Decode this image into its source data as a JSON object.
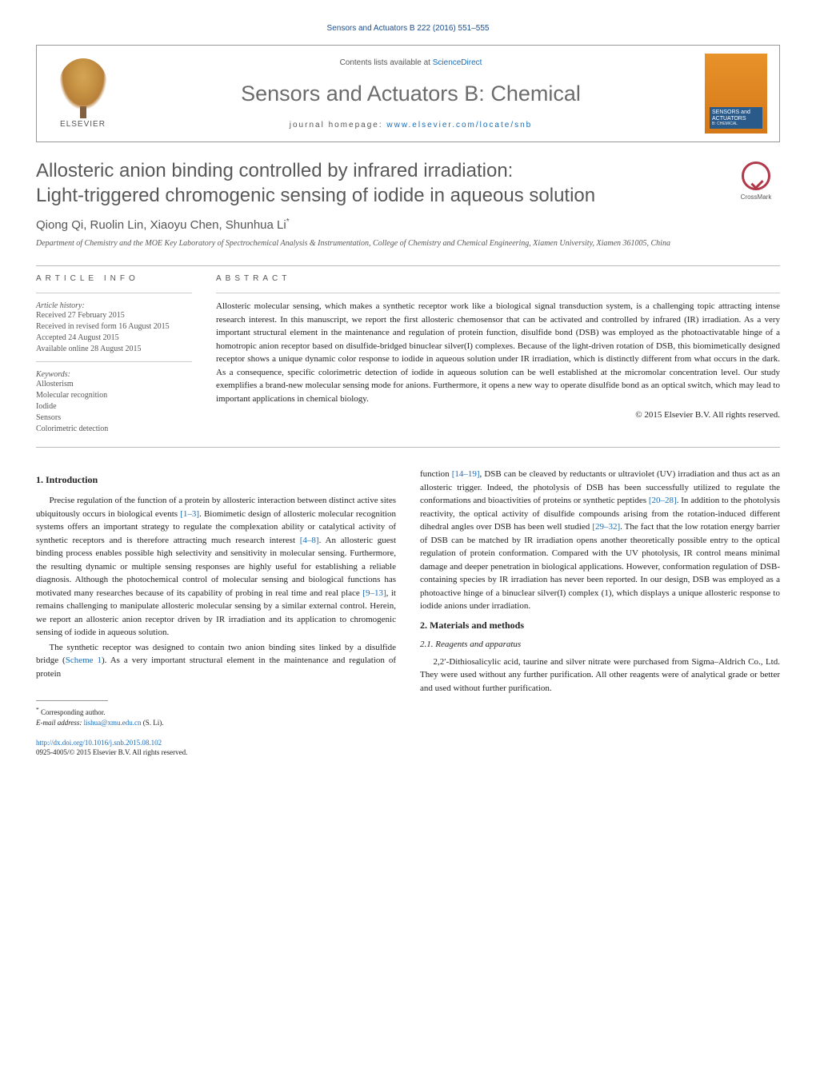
{
  "journal_ref": "Sensors and Actuators B 222 (2016) 551–555",
  "header": {
    "contents_prefix": "Contents lists available at ",
    "contents_link": "ScienceDirect",
    "journal_title": "Sensors and Actuators B: Chemical",
    "homepage_prefix": "journal homepage: ",
    "homepage_link": "www.elsevier.com/locate/snb",
    "elsevier_label": "ELSEVIER",
    "cover_label_top": "SENSORS and",
    "cover_label_bottom": "ACTUATORS",
    "cover_sub": "B: CHEMICAL"
  },
  "crossmark": "CrossMark",
  "title_line1": "Allosteric anion binding controlled by infrared irradiation:",
  "title_line2": "Light-triggered chromogenic sensing of iodide in aqueous solution",
  "authors": "Qiong Qi, Ruolin Lin, Xiaoyu Chen, Shunhua Li",
  "author_marker": "*",
  "affiliation": "Department of Chemistry and the MOE Key Laboratory of Spectrochemical Analysis & Instrumentation, College of Chemistry and Chemical Engineering, Xiamen University, Xiamen 361005, China",
  "info": {
    "heading": "ARTICLE INFO",
    "history_label": "Article history:",
    "history": [
      "Received 27 February 2015",
      "Received in revised form 16 August 2015",
      "Accepted 24 August 2015",
      "Available online 28 August 2015"
    ],
    "keywords_label": "Keywords:",
    "keywords": [
      "Allosterism",
      "Molecular recognition",
      "Iodide",
      "Sensors",
      "Colorimetric detection"
    ]
  },
  "abstract": {
    "heading": "ABSTRACT",
    "text": "Allosteric molecular sensing, which makes a synthetic receptor work like a biological signal transduction system, is a challenging topic attracting intense research interest. In this manuscript, we report the first allosteric chemosensor that can be activated and controlled by infrared (IR) irradiation. As a very important structural element in the maintenance and regulation of protein function, disulfide bond (DSB) was employed as the photoactivatable hinge of a homotropic anion receptor based on disulfide-bridged binuclear silver(I) complexes. Because of the light-driven rotation of DSB, this biomimetically designed receptor shows a unique dynamic color response to iodide in aqueous solution under IR irradiation, which is distinctly different from what occurs in the dark. As a consequence, specific colorimetric detection of iodide in aqueous solution can be well established at the micromolar concentration level. Our study exemplifies a brand-new molecular sensing mode for anions. Furthermore, it opens a new way to operate disulfide bond as an optical switch, which may lead to important applications in chemical biology.",
    "copyright": "© 2015 Elsevier B.V. All rights reserved."
  },
  "body": {
    "sec1": "1.  Introduction",
    "p1a": "Precise regulation of the function of a protein by allosteric interaction between distinct active sites ubiquitously occurs in biological events ",
    "p1_ref1": "[1–3]",
    "p1b": ". Biomimetic design of allosteric molecular recognition systems offers an important strategy to regulate the complexation ability or catalytical activity of synthetic receptors and is therefore attracting much research interest ",
    "p1_ref2": "[4–8]",
    "p1c": ". An allosteric guest binding process enables possible high selectivity and sensitivity in molecular sensing. Furthermore, the resulting dynamic or multiple sensing responses are highly useful for establishing a reliable diagnosis. Although the photochemical control of molecular sensing and biological functions has motivated many researches because of its capability of probing in real time and real place ",
    "p1_ref3": "[9–13]",
    "p1d": ", it remains challenging to manipulate allosteric molecular sensing by a similar external control. Herein, we report an allosteric anion receptor driven by IR irradiation and its application to chromogenic sensing of iodide in aqueous solution.",
    "p2a": "The synthetic receptor was designed to contain two anion binding sites linked by a disulfide bridge (",
    "p2_ref1": "Scheme 1",
    "p2b": "). As a very important structural element in the maintenance and regulation of protein",
    "p3a": "function ",
    "p3_ref1": "[14–19]",
    "p3b": ", DSB can be cleaved by reductants or ultraviolet (UV) irradiation and thus act as an allosteric trigger. Indeed, the photolysis of DSB has been successfully utilized to regulate the conformations and bioactivities of proteins or synthetic peptides ",
    "p3_ref2": "[20–28]",
    "p3c": ". In addition to the photolysis reactivity, the optical activity of disulfide compounds arising from the rotation-induced different dihedral angles over DSB has been well studied ",
    "p3_ref3": "[29–32]",
    "p3d": ". The fact that the low rotation energy barrier of DSB can be matched by IR irradiation opens another theoretically possible entry to the optical regulation of protein conformation. Compared with the UV photolysis, IR control means minimal damage and deeper penetration in biological applications. However, conformation regulation of DSB-containing species by IR irradiation has never been reported. In our design, DSB was employed as a photoactive hinge of a binuclear silver(I) complex (1), which displays a unique allosteric response to iodide anions under irradiation.",
    "sec2": "2.  Materials and methods",
    "sec21": "2.1.  Reagents and apparatus",
    "p4": "2,2′-Dithiosalicylic acid, taurine and silver nitrate were purchased from Sigma–Aldrich Co., Ltd. They were used without any further purification. All other reagents were of analytical grade or better and used without further purification."
  },
  "footnote": {
    "corr": "Corresponding author.",
    "email_label": "E-mail address: ",
    "email": "lishua@xmu.edu.cn",
    "email_suffix": " (S. Li)."
  },
  "footer": {
    "doi": "http://dx.doi.org/10.1016/j.snb.2015.08.102",
    "issn": "0925-4005/© 2015 Elsevier B.V. All rights reserved."
  },
  "colors": {
    "link": "#1a6db8",
    "heading_gray": "#585858",
    "text": "#222222",
    "muted": "#555555",
    "accent_orange": "#e8922a",
    "crossmark_red": "#b03848"
  },
  "typography": {
    "body_fontsize": 11,
    "title_fontsize": 24,
    "journal_title_fontsize": 27,
    "info_fontsize": 10,
    "footnote_fontsize": 9
  }
}
